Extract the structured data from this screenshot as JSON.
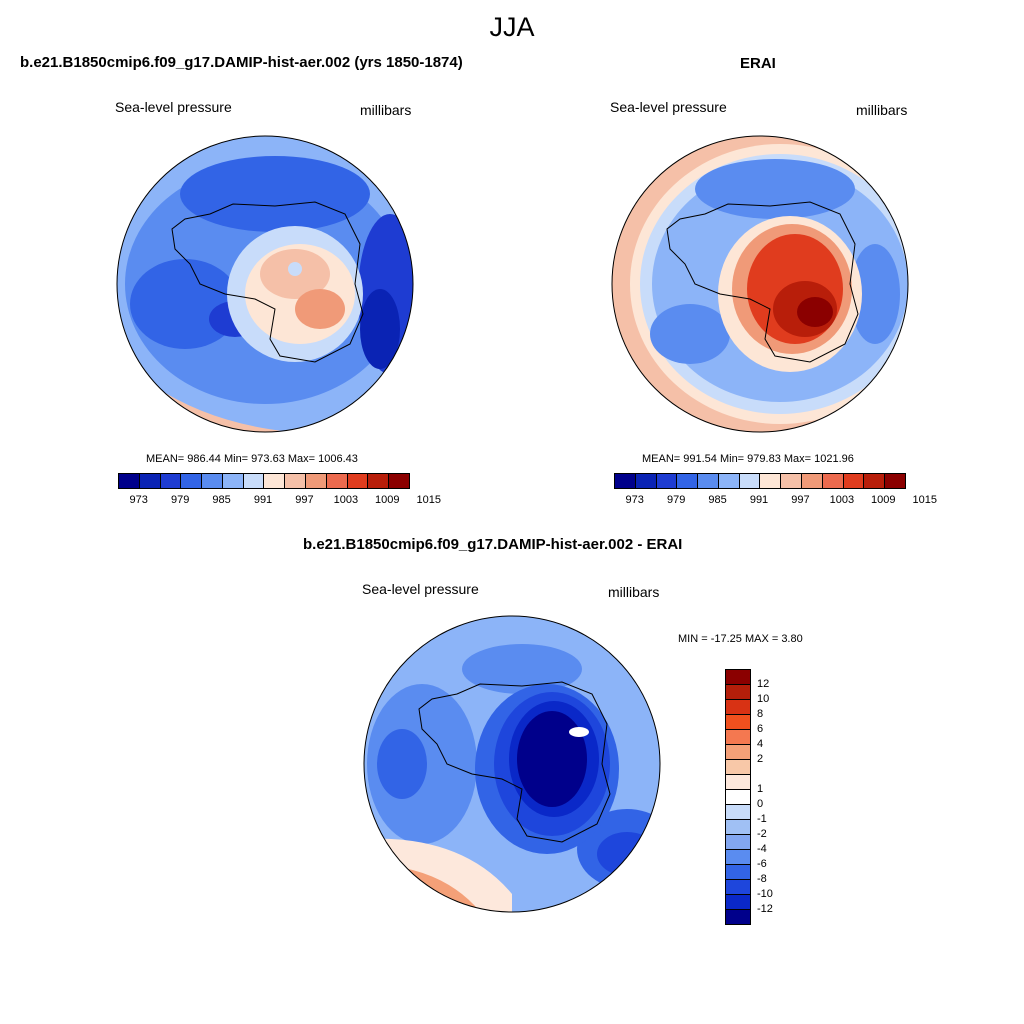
{
  "title": "JJA",
  "panels": [
    {
      "title": "b.e21.B1850cmip6.f09_g17.DAMIP-hist-aer.002 (yrs 1850-1874)",
      "left_label": "Sea-level pressure",
      "right_label": "millibars",
      "stats": "MEAN= 986.44  Min= 973.63  Max= 1006.43",
      "mean": 986.44,
      "min": 973.63,
      "max": 1006.43
    },
    {
      "title": "ERAI",
      "left_label": "Sea-level pressure",
      "right_label": "millibars",
      "stats": "MEAN= 991.54  Min= 979.83  Max= 1021.96",
      "mean": 991.54,
      "min": 979.83,
      "max": 1021.96
    },
    {
      "title": "b.e21.B1850cmip6.f09_g17.DAMIP-hist-aer.002 - ERAI",
      "left_label": "Sea-level pressure",
      "right_label": "millibars",
      "stats": "MIN = -17.25 MAX =   3.80",
      "min": -17.25,
      "max": 3.8
    }
  ],
  "colorbar_top": {
    "colors": [
      "#00008b",
      "#0a23b4",
      "#1e3cd2",
      "#3264e6",
      "#5a8cf0",
      "#8cb4f8",
      "#c8dcfa",
      "#fde6d6",
      "#f5c0a8",
      "#f09a78",
      "#ec6a4e",
      "#e03c1e",
      "#b81e0a",
      "#8b0000"
    ],
    "ticks": [
      "973",
      "979",
      "985",
      "991",
      "997",
      "1003",
      "1009",
      "1015"
    ]
  },
  "colorbar_diff": {
    "colors": [
      "#8b0000",
      "#b41e0a",
      "#d83214",
      "#f0501e",
      "#f47850",
      "#f4a078",
      "#f8c8a8",
      "#fde8dc",
      "#ffffff",
      "#c8dcfa",
      "#a0c0f4",
      "#82a6f0",
      "#5a8cf0",
      "#3264e6",
      "#1e46dc",
      "#0a28c8",
      "#00008b"
    ],
    "ticks": [
      "12",
      "10",
      "8",
      "6",
      "4",
      "2",
      "1",
      "0",
      "-1",
      "-2",
      "-4",
      "-6",
      "-8",
      "-10",
      "-12"
    ]
  }
}
